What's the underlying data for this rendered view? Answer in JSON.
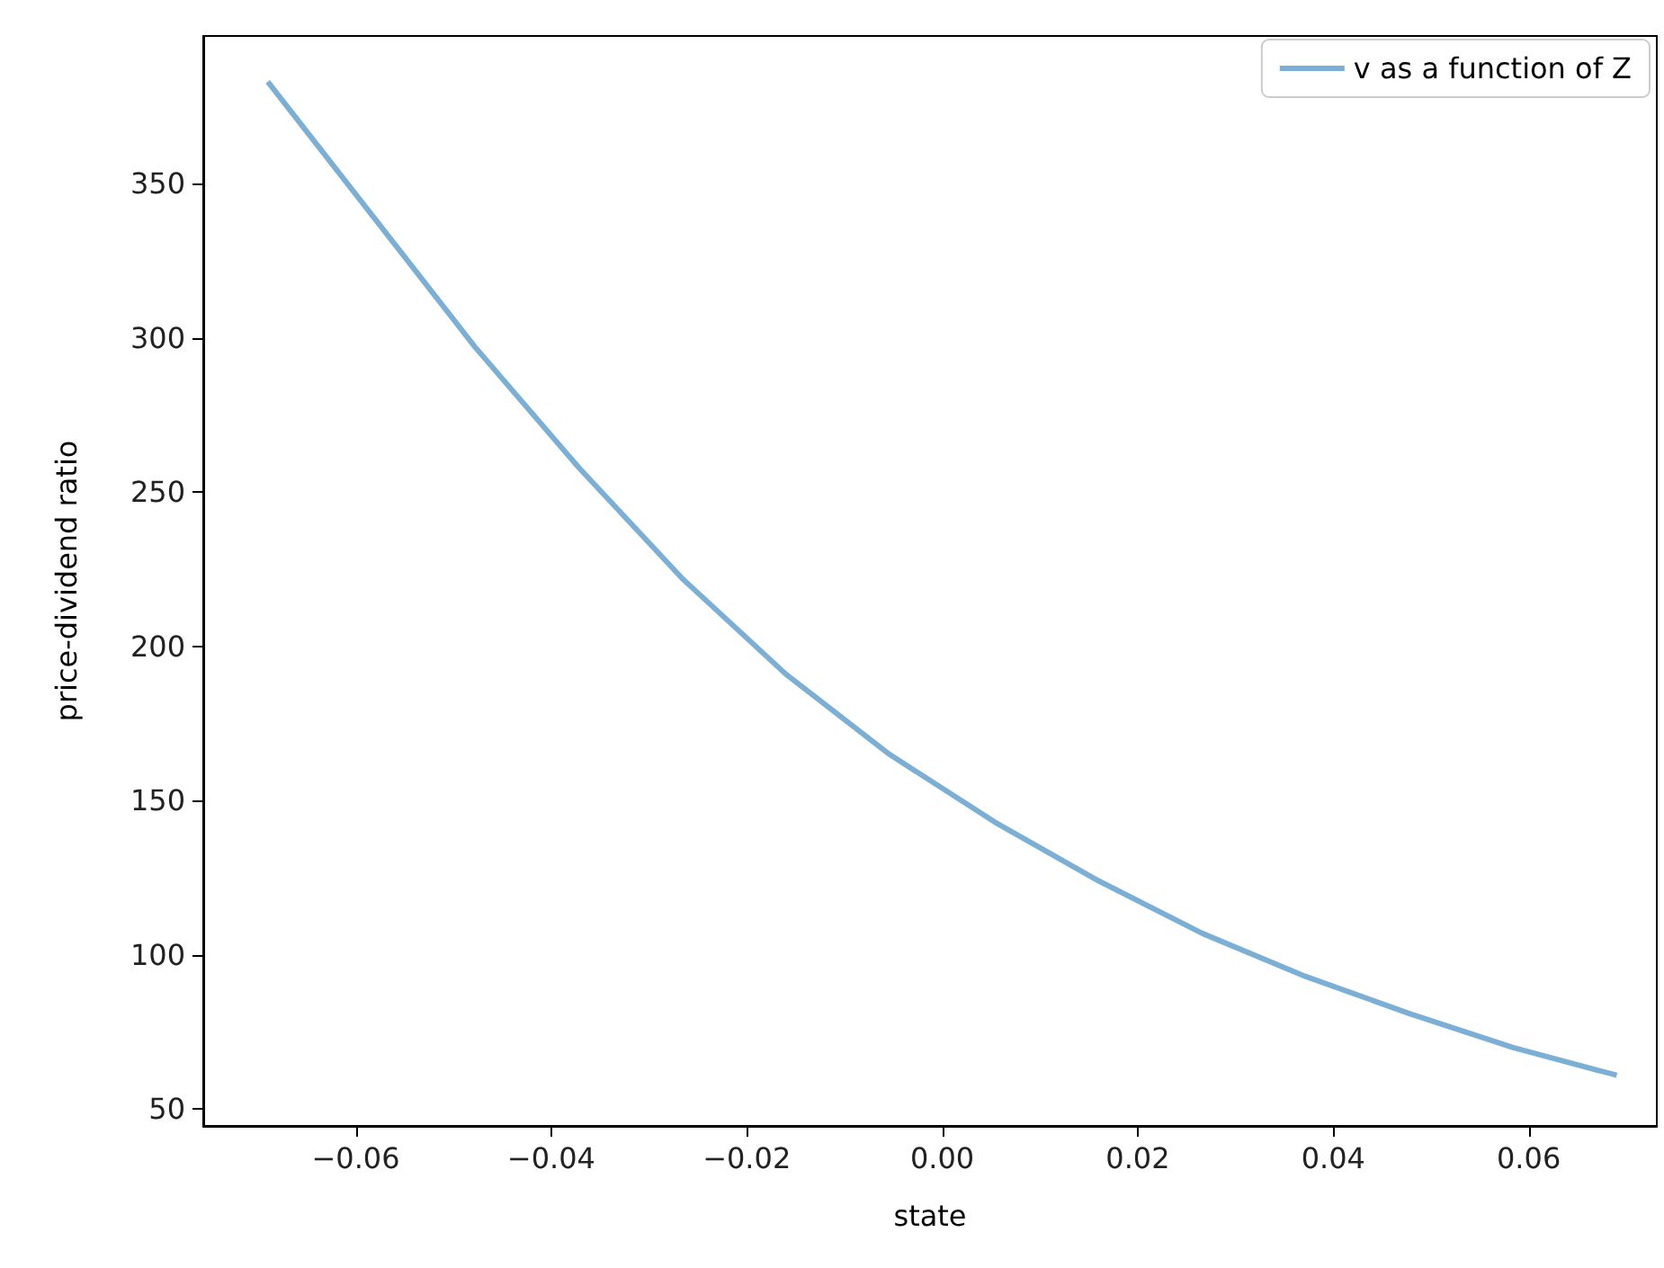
{
  "chart_data": {
    "type": "line",
    "xlabel": "state",
    "ylabel": "price-dividend ratio",
    "x": [
      -0.069,
      -0.0584,
      -0.0478,
      -0.0372,
      -0.0266,
      -0.016,
      -0.0054,
      0.0054,
      0.016,
      0.0266,
      0.0372,
      0.0478,
      0.0584,
      0.069
    ],
    "series": [
      {
        "name": "v as a function of Z",
        "color": "#7bafd6",
        "values": [
          383,
          340,
          297,
          258,
          222,
          191,
          165,
          143,
          124,
          107,
          93,
          81,
          70,
          61
        ]
      }
    ],
    "xlim": [
      -0.0756,
      0.0731
    ],
    "ylim": [
      44.6,
      397.8
    ],
    "xticks": [
      {
        "value": -0.06,
        "label": "−0.06"
      },
      {
        "value": -0.04,
        "label": "−0.04"
      },
      {
        "value": -0.02,
        "label": "−0.02"
      },
      {
        "value": 0,
        "label": "0.00"
      },
      {
        "value": 0.02,
        "label": "0.02"
      },
      {
        "value": 0.04,
        "label": "0.04"
      },
      {
        "value": 0.06,
        "label": "0.06"
      }
    ],
    "yticks": [
      50,
      100,
      150,
      200,
      250,
      300,
      350
    ],
    "grid": false,
    "legend": "top right",
    "marker": "none",
    "line_style": "solid"
  }
}
